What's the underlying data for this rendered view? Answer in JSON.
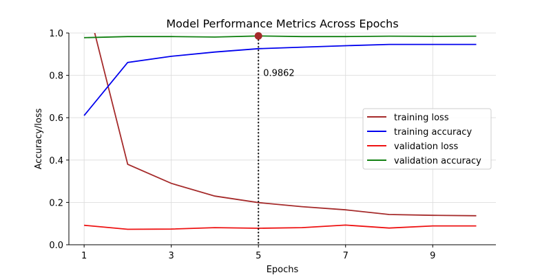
{
  "chart_data": {
    "type": "line",
    "title": "Model Performance Metrics Across Epochs",
    "xlabel": "Epochs",
    "ylabel": "Accuracy/loss",
    "x": [
      1,
      2,
      3,
      4,
      5,
      6,
      7,
      8,
      9,
      10
    ],
    "xlim": [
      0.65,
      10.45
    ],
    "ylim": [
      0.0,
      1.0
    ],
    "xticks": [
      1,
      3,
      5,
      7,
      9
    ],
    "yticks": [
      0.0,
      0.2,
      0.4,
      0.6,
      0.8,
      1.0
    ],
    "xtick_labels": [
      "1",
      "3",
      "5",
      "7",
      "9"
    ],
    "ytick_labels": [
      "0.0",
      "0.2",
      "0.4",
      "0.6",
      "0.8",
      "1.0"
    ],
    "grid": true,
    "legend_position": "center-right",
    "series": [
      {
        "name": "training loss",
        "color": "#a52a2a",
        "values": [
          1.2,
          0.38,
          0.29,
          0.23,
          0.199,
          0.18,
          0.165,
          0.143,
          0.139,
          0.137
        ]
      },
      {
        "name": "training accuracy",
        "color": "#0000ee",
        "values": [
          0.61,
          0.861,
          0.89,
          0.91,
          0.926,
          0.933,
          0.94,
          0.946,
          0.946,
          0.946
        ]
      },
      {
        "name": "validation loss",
        "color": "#ee1111",
        "values": [
          0.092,
          0.073,
          0.074,
          0.081,
          0.078,
          0.081,
          0.093,
          0.079,
          0.089,
          0.089
        ]
      },
      {
        "name": "validation accuracy",
        "color": "#108010",
        "values": [
          0.978,
          0.983,
          0.983,
          0.981,
          0.9862,
          0.983,
          0.983,
          0.985,
          0.984,
          0.985
        ]
      }
    ],
    "annotation": {
      "x": 5,
      "y": 0.9862,
      "label": "0.9862",
      "marker_color": "#a52a2a",
      "line_style": "dotted"
    }
  }
}
